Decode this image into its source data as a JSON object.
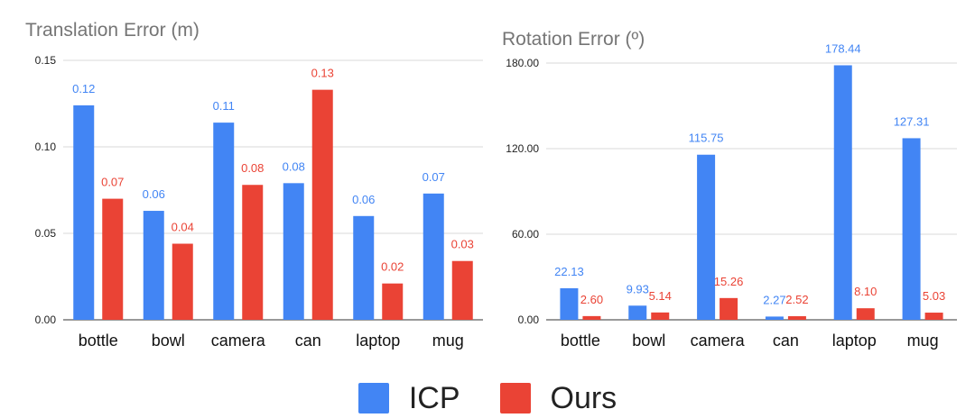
{
  "colors": {
    "ICP": "#4285F4",
    "Ours": "#EA4335",
    "grid": "#d9d9d9",
    "axis": "#333333",
    "title": "#757575"
  },
  "legend": [
    {
      "name": "ICP",
      "color": "#4285F4"
    },
    {
      "name": "Ours",
      "color": "#EA4335"
    }
  ],
  "chart_data": [
    {
      "type": "bar",
      "title": "Translation Error (m)",
      "categories": [
        "bottle",
        "bowl",
        "camera",
        "can",
        "laptop",
        "mug"
      ],
      "series": [
        {
          "name": "ICP",
          "values": [
            0.124,
            0.063,
            0.114,
            0.079,
            0.06,
            0.073
          ],
          "labels": [
            "0.12",
            "0.06",
            "0.11",
            "0.08",
            "0.06",
            "0.07"
          ]
        },
        {
          "name": "Ours",
          "values": [
            0.07,
            0.044,
            0.078,
            0.133,
            0.021,
            0.034
          ],
          "labels": [
            "0.07",
            "0.04",
            "0.08",
            "0.13",
            "0.02",
            "0.03"
          ]
        }
      ],
      "yticks": [
        "0.00",
        "0.05",
        "0.10",
        "0.15"
      ],
      "ylim": [
        0,
        0.15
      ],
      "grid": true,
      "legend": "bottom"
    },
    {
      "type": "bar",
      "title": "Rotation Error (º)",
      "categories": [
        "bottle",
        "bowl",
        "camera",
        "can",
        "laptop",
        "mug"
      ],
      "series": [
        {
          "name": "ICP",
          "values": [
            22.13,
            9.93,
            115.75,
            2.27,
            178.44,
            127.31
          ],
          "labels": [
            "22.13",
            "9.93",
            "115.75",
            "2.27",
            "178.44",
            "127.31"
          ]
        },
        {
          "name": "Ours",
          "values": [
            2.6,
            5.14,
            15.26,
            2.52,
            8.1,
            5.03
          ],
          "labels": [
            "2.60",
            "5.14",
            "15.26",
            "2.52",
            "8.10",
            "5.03"
          ]
        }
      ],
      "yticks": [
        "0.00",
        "60.00",
        "120.00",
        "180.00"
      ],
      "ylim": [
        0,
        180
      ],
      "grid": true,
      "legend": "bottom"
    }
  ]
}
